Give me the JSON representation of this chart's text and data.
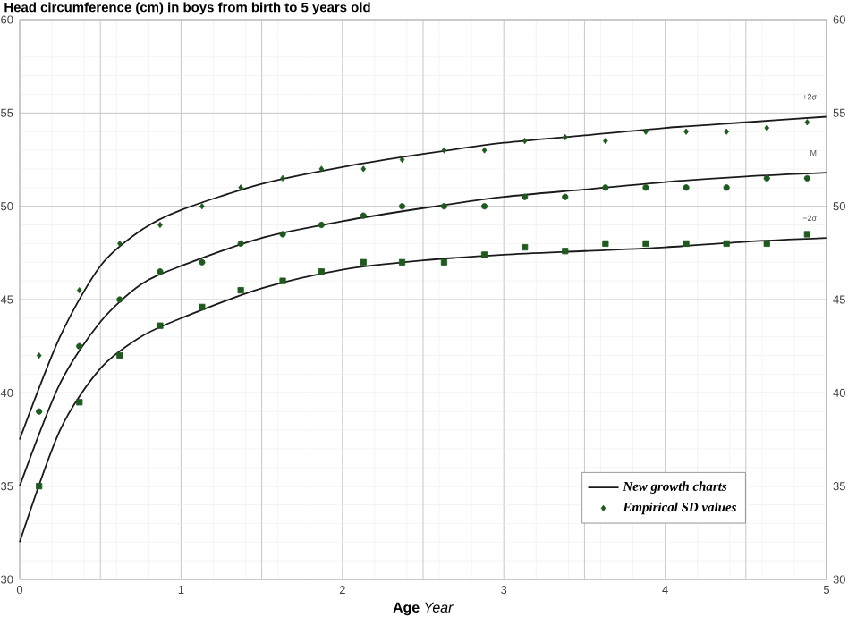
{
  "chart_data": {
    "type": "line",
    "title": "Head circumference (cm) in boys from birth to 5 years old",
    "xlabel": "**Age** *Year*",
    "xlim": [
      0,
      5
    ],
    "xticks": [
      0,
      1,
      2,
      3,
      4,
      5
    ],
    "ylim": [
      30,
      60
    ],
    "yticks": [
      30,
      35,
      40,
      45,
      50,
      55,
      60
    ],
    "y2lim": [
      30,
      60
    ],
    "y2ticks": [
      30,
      35,
      40,
      45,
      50,
      55,
      60
    ],
    "grid": true,
    "legend": "bottom right",
    "series": [
      {
        "name": "New growth charts",
        "color": "#1a1a1a",
        "marker": "none",
        "x": [
          0,
          0.25,
          0.5,
          0.75,
          1,
          1.5,
          2,
          2.5,
          3,
          3.5,
          4,
          4.5,
          5
        ],
        "values": [
          37.5,
          43,
          46.8,
          48.7,
          49.8,
          51.2,
          52.1,
          52.8,
          53.4,
          53.8,
          54.2,
          54.5,
          54.8
        ]
      },
      {
        "type": "line",
        "color": "#1a1a1a",
        "marker": "none",
        "x": [
          0,
          0.25,
          0.5,
          0.75,
          1,
          1.5,
          2,
          2.5,
          3,
          3.5,
          4,
          4.5,
          5
        ],
        "values": [
          35,
          40.5,
          43.8,
          45.8,
          46.8,
          48.3,
          49.2,
          49.9,
          50.5,
          50.9,
          51.3,
          51.6,
          51.8
        ]
      },
      {
        "type": "line",
        "color": "#1a1a1a",
        "marker": "none",
        "x": [
          0,
          0.25,
          0.5,
          0.75,
          1,
          1.5,
          2,
          2.5,
          3,
          3.5,
          4,
          4.5,
          5
        ],
        "values": [
          32,
          38,
          41.3,
          43,
          44,
          45.6,
          46.6,
          47.1,
          47.4,
          47.6,
          47.8,
          48.1,
          48.3
        ]
      },
      {
        "name": "Empirical SD values",
        "type": "scatter",
        "color": "#1e5a1e",
        "marker": "diamond",
        "x": [
          0.12,
          0.37,
          0.62,
          0.87,
          1.13,
          1.37,
          1.63,
          1.87,
          2.13,
          2.37,
          2.63,
          2.88,
          3.13,
          3.38,
          3.63,
          3.88,
          4.13,
          4.38,
          4.63,
          4.88
        ],
        "values": [
          42,
          45.5,
          48,
          49,
          50,
          51,
          51.5,
          52,
          52,
          52.5,
          53,
          53,
          53.5,
          53.7,
          53.5,
          54,
          54,
          54,
          54.2,
          54.5
        ]
      },
      {
        "type": "scatter",
        "color": "#1e5a1e",
        "marker": "circle",
        "x": [
          0.12,
          0.37,
          0.62,
          0.87,
          1.13,
          1.37,
          1.63,
          1.87,
          2.13,
          2.37,
          2.63,
          2.88,
          3.13,
          3.38,
          3.63,
          3.88,
          4.13,
          4.38,
          4.63,
          4.88
        ],
        "values": [
          39,
          42.5,
          45,
          46.5,
          47,
          48,
          48.5,
          49,
          49.5,
          50,
          50,
          50,
          50.5,
          50.5,
          51,
          51,
          51,
          51,
          51.5,
          51.5
        ]
      },
      {
        "type": "scatter",
        "color": "#1e5a1e",
        "marker": "square",
        "x": [
          0.12,
          0.37,
          0.62,
          0.87,
          1.13,
          1.37,
          1.63,
          1.87,
          2.13,
          2.37,
          2.63,
          2.88,
          3.13,
          3.38,
          3.63,
          3.88,
          4.13,
          4.38,
          4.63,
          4.88
        ],
        "values": [
          35,
          39.5,
          42,
          43.6,
          44.6,
          45.5,
          46,
          46.5,
          47,
          47,
          47,
          47.4,
          47.8,
          47.6,
          48,
          48,
          48,
          48,
          48,
          48.5
        ]
      }
    ],
    "annotations": [
      "+2σ",
      "M",
      "−2σ"
    ]
  }
}
